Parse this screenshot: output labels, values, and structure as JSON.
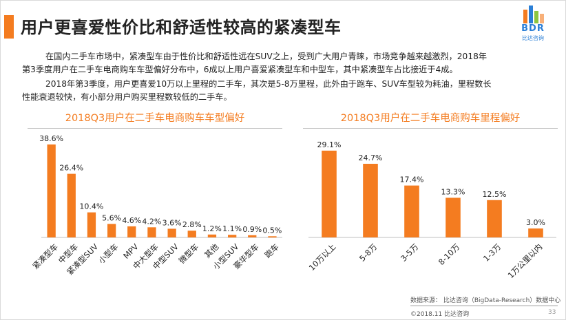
{
  "header": {
    "title": "用户更喜爱性价比和舒适性较高的紧凑型车",
    "logo_text": "BDR",
    "logo_sub": "比达咨询"
  },
  "body": {
    "para1_line1": "在国内二手车市场中，紧凑型车由于性价比和舒适性远在SUV之上，受到广大用户青睐，市场竞争越来越激烈，2018年",
    "para1_line2": "第3季度用户在二手车电商购车车型偏好分布中，6成以上用户喜爱紧凑型车和中型车，其中紧凑型车占比接近于4成。",
    "para2_line1": "2018年第3季度，用户更喜爱10万以上里程的二手车，其次是5-8万里程，此外由于跑车、SUV车型较为耗油，里程数长",
    "para2_line2": "性能衰退较快，有小部分用户购买里程数较低的二手车。"
  },
  "chart_data": [
    {
      "type": "bar",
      "title": "2018Q3用户在二手车电商购车车型偏好",
      "categories": [
        "紧凑型车",
        "中型车",
        "紧凑型SUV",
        "小型车",
        "MPV",
        "中大型车",
        "中型SUV",
        "微型车",
        "其他",
        "小型SUV",
        "豪华型车",
        "跑车"
      ],
      "values": [
        38.6,
        26.4,
        10.4,
        5.6,
        4.6,
        4.2,
        3.6,
        2.8,
        1.2,
        1.1,
        0.9,
        0.5
      ],
      "labels": [
        "38.6%",
        "26.4%",
        "10.4%",
        "5.6%",
        "4.6%",
        "4.2%",
        "3.6%",
        "2.8%",
        "1.2%",
        "1.1%",
        "0.9%",
        "0.5%"
      ],
      "unit": "%",
      "ylim": [
        0,
        40
      ],
      "grid": false,
      "bar_color": "#f47c20"
    },
    {
      "type": "bar",
      "title": "2018Q3用户在二手车电商购车里程偏好",
      "categories": [
        "10万以上",
        "5-8万",
        "3-5万",
        "8-10万",
        "1-3万",
        "1万公里以内"
      ],
      "values": [
        29.1,
        24.7,
        17.4,
        13.3,
        12.5,
        3.0
      ],
      "labels": [
        "29.1%",
        "24.7%",
        "17.4%",
        "13.3%",
        "12.5%",
        "3.0%"
      ],
      "unit": "%",
      "ylim": [
        0,
        30
      ],
      "grid": false,
      "bar_color": "#f47c20"
    }
  ],
  "footer": {
    "source": "数据来源： 比达咨询（BigData-Research）数据中心",
    "copyright": "©2018.11  比达咨询",
    "page": "33"
  },
  "colors": {
    "accent": "#f47c20",
    "logo_blue": "#2b7fd6"
  }
}
